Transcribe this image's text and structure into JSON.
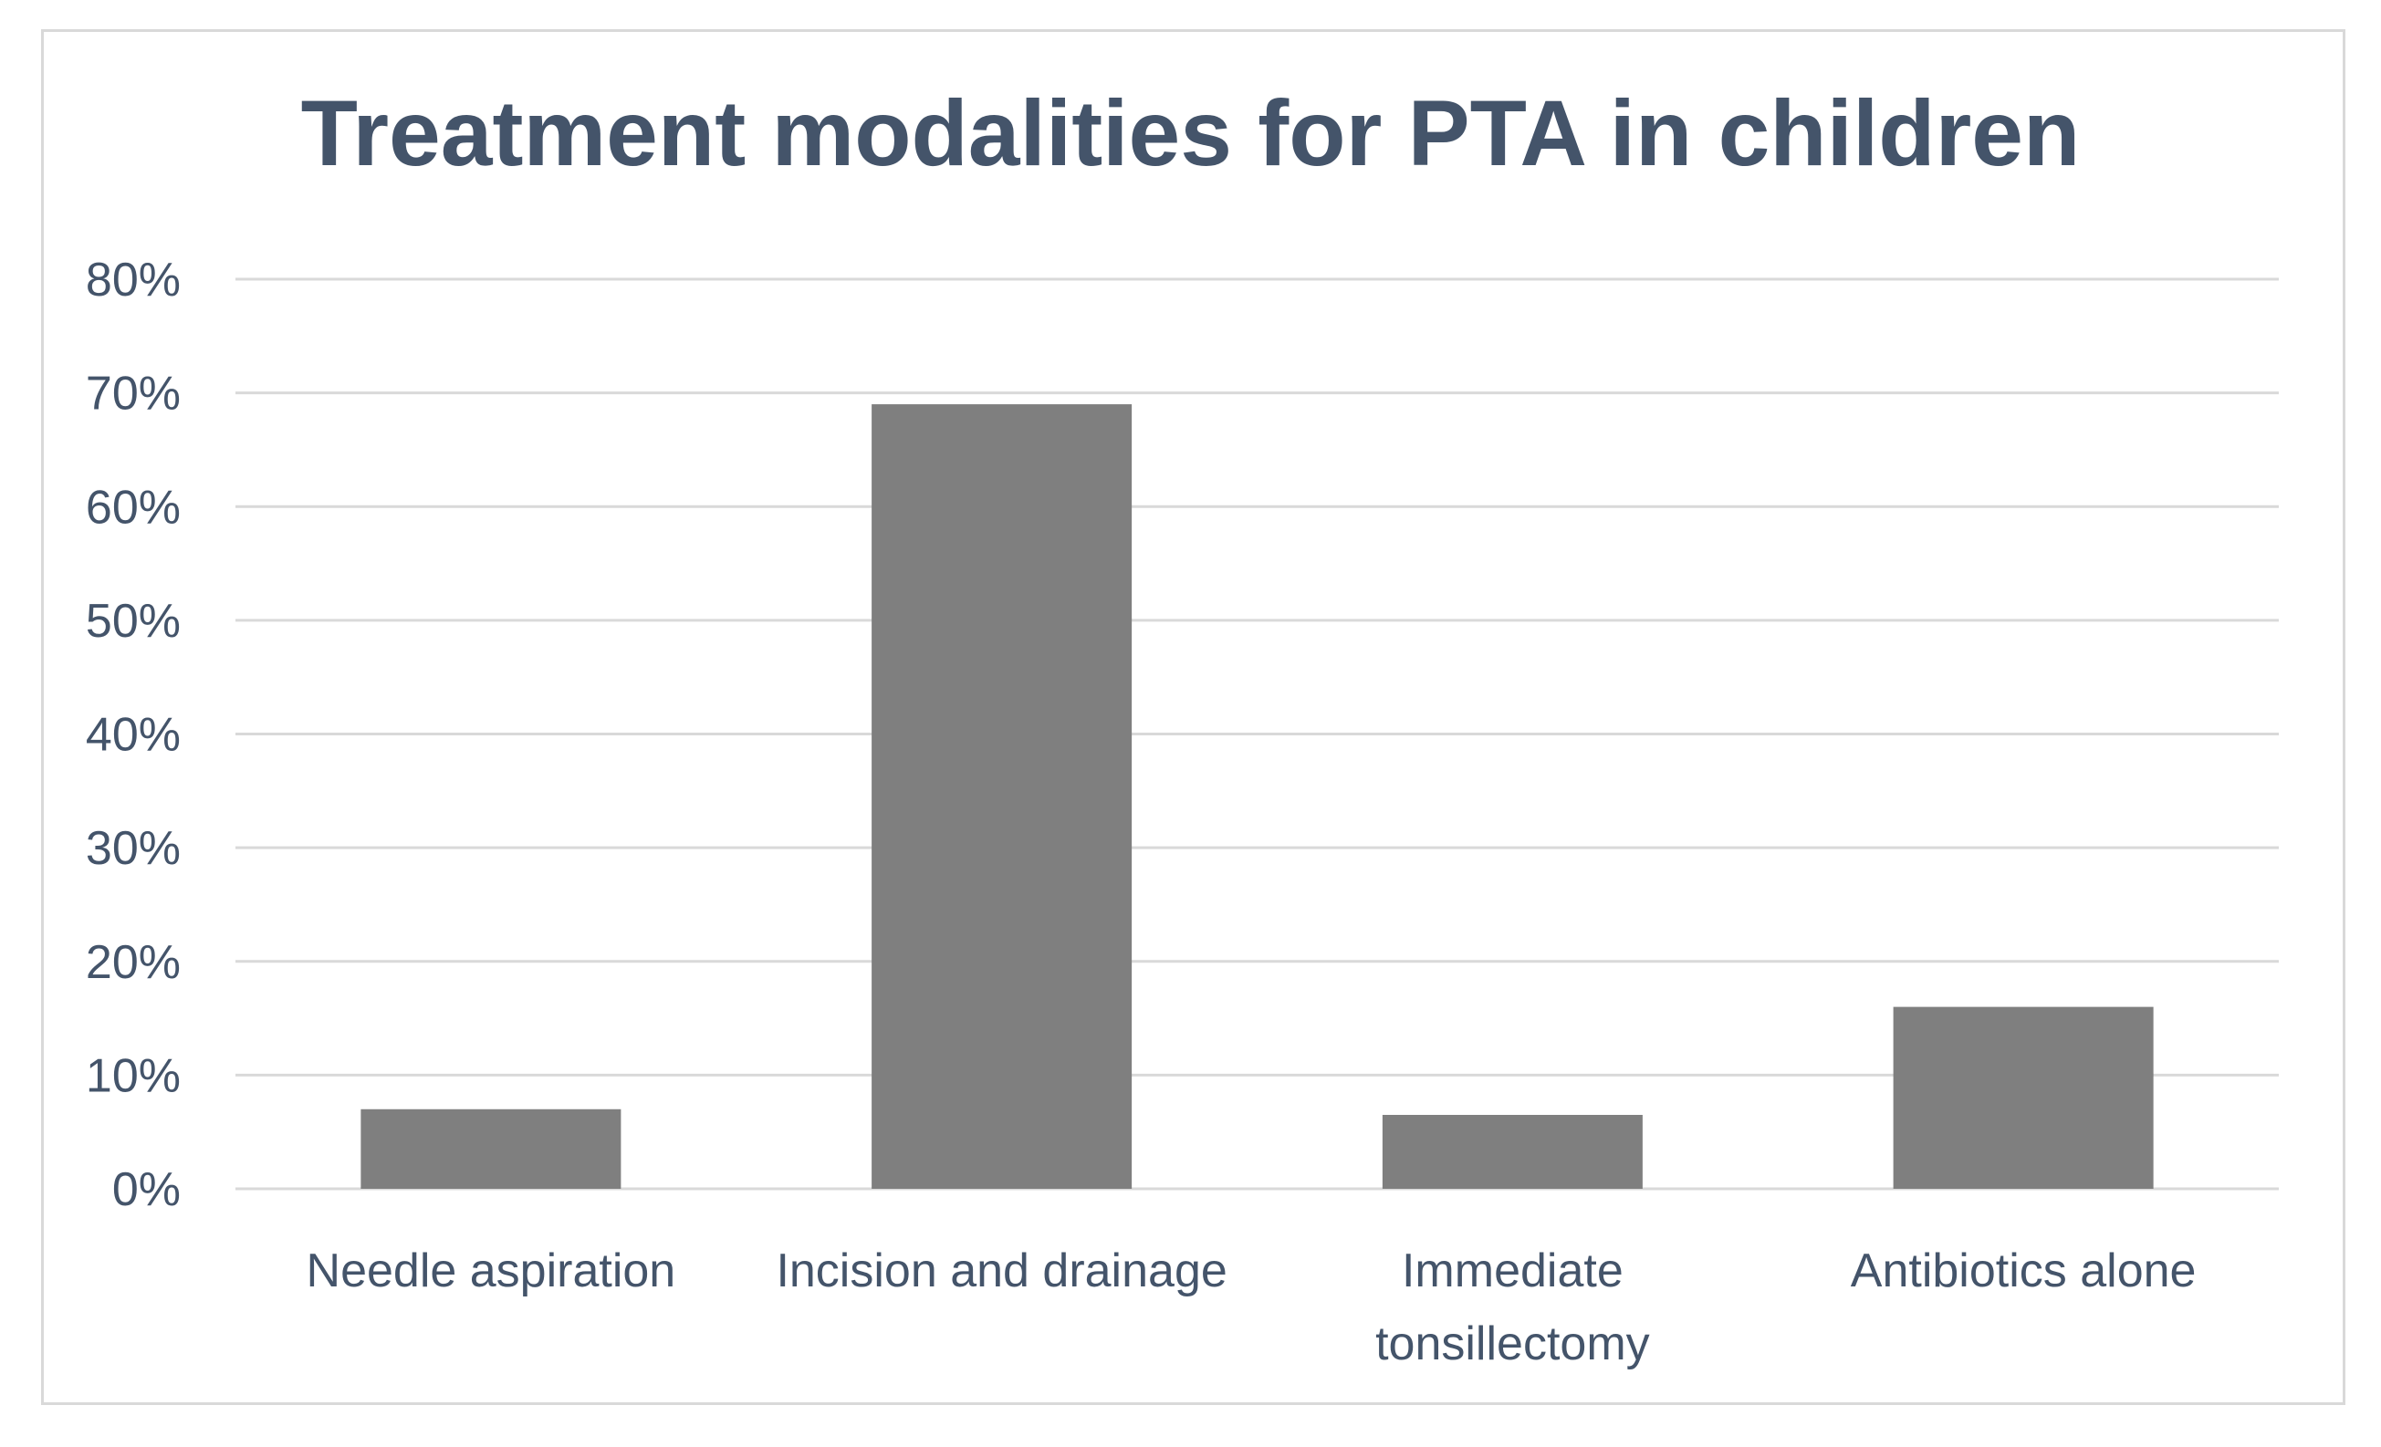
{
  "chart_data": {
    "type": "bar",
    "title": "Treatment modalities for PTA in children",
    "xlabel": "",
    "ylabel": "",
    "categories": [
      [
        "Needle aspiration"
      ],
      [
        "Incision and drainage"
      ],
      [
        "Immediate",
        "tonsillectomy"
      ],
      [
        "Antibiotics alone"
      ]
    ],
    "values": [
      7,
      69,
      6.5,
      16
    ],
    "ylim": [
      0,
      80
    ],
    "yticks": [
      0,
      10,
      20,
      30,
      40,
      50,
      60,
      70,
      80
    ],
    "ytick_labels": [
      "0%",
      "10%",
      "20%",
      "30%",
      "40%",
      "50%",
      "60%",
      "70%",
      "80%"
    ],
    "grid": true,
    "legend": "none",
    "colors": {
      "bar": "#7f7f7f",
      "grid": "#d9d9d9",
      "text": "#44546a",
      "frame": "#d9d9d9"
    }
  }
}
